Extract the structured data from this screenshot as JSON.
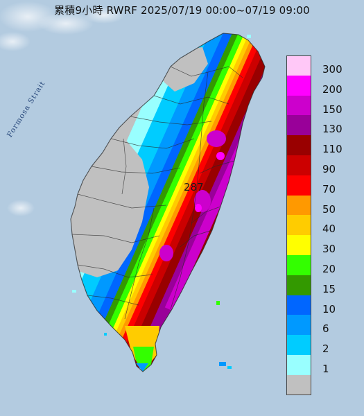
{
  "title": "累積9小時 RWRF 2025/07/19 00:00~07/19 09:00",
  "sea_label": "Formosa Strait",
  "peak_value": "287",
  "legend": {
    "items": [
      {
        "label": "300",
        "color": "#ffc8f7"
      },
      {
        "label": "200",
        "color": "#ff00ff"
      },
      {
        "label": "150",
        "color": "#cc00cc"
      },
      {
        "label": "130",
        "color": "#990099"
      },
      {
        "label": "110",
        "color": "#990000"
      },
      {
        "label": "90",
        "color": "#cc0000"
      },
      {
        "label": "70",
        "color": "#ff0000"
      },
      {
        "label": "50",
        "color": "#ff9900"
      },
      {
        "label": "40",
        "color": "#ffcc00"
      },
      {
        "label": "30",
        "color": "#ffff00"
      },
      {
        "label": "20",
        "color": "#33ff00"
      },
      {
        "label": "15",
        "color": "#339900"
      },
      {
        "label": "10",
        "color": "#0066ff"
      },
      {
        "label": "6",
        "color": "#0099ff"
      },
      {
        "label": "2",
        "color": "#00ccff"
      },
      {
        "label": "1",
        "color": "#99ffff"
      },
      {
        "label": "",
        "color": "#c0c0c0"
      }
    ]
  }
}
